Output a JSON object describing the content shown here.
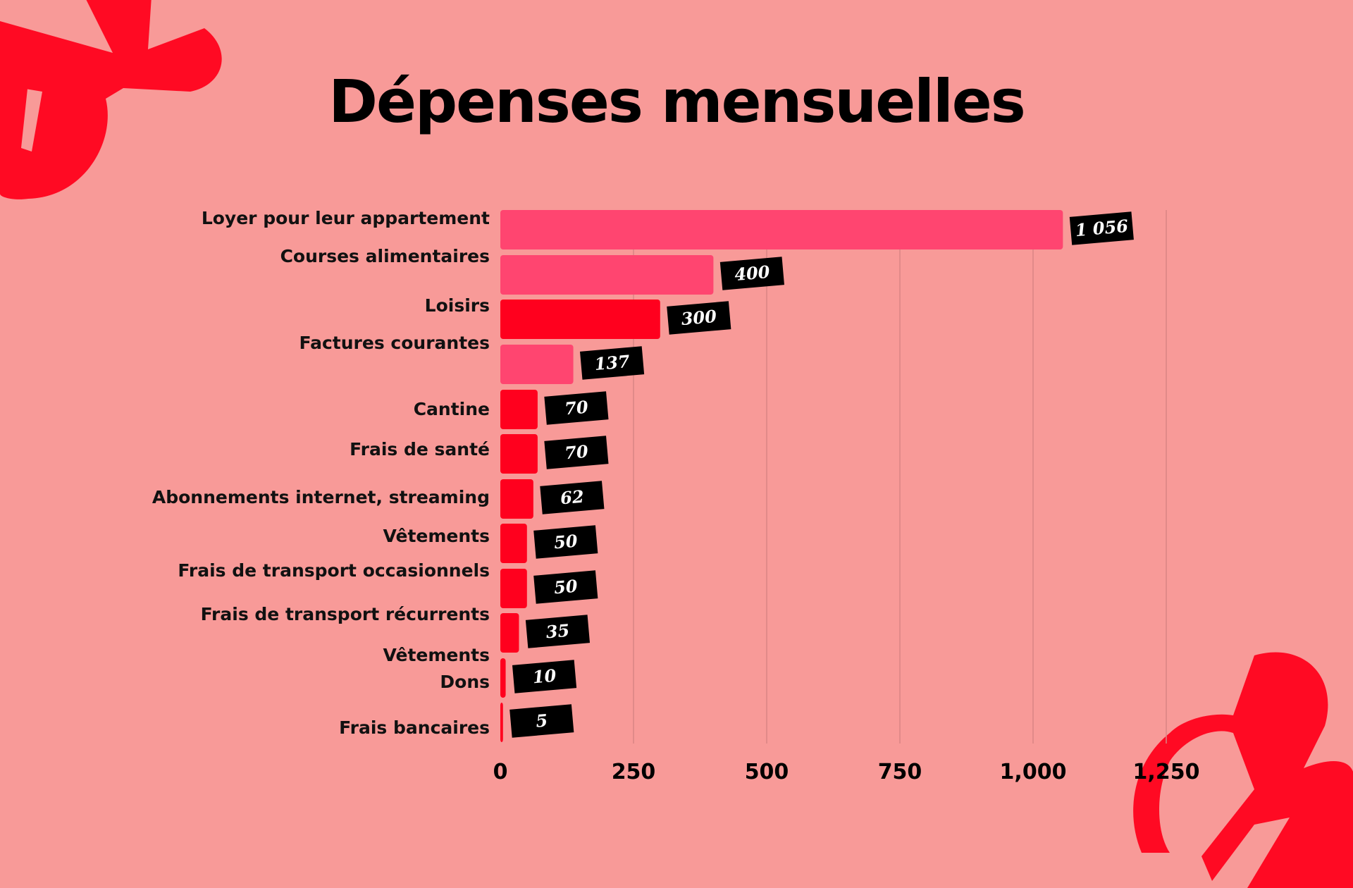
{
  "title": "Dépenses mensuelles",
  "colors": {
    "background": "#f89a98",
    "bar_pink": "#ff4570",
    "bar_red": "#ff001e",
    "label_box": "#000000",
    "decoration": "#ff0a23"
  },
  "chart_data": {
    "type": "bar",
    "orientation": "horizontal",
    "title": "Dépenses mensuelles",
    "categories": [
      "Loyer  pour leur appartement",
      "Courses alimentaires",
      "Loisirs",
      "Factures courantes",
      "Cantine",
      "Frais de santé",
      "Abonnements internet, streaming",
      "Vêtements ",
      "Frais de transport occasionnels",
      "Frais de transport récurrents",
      "Dons",
      "Frais bancaires"
    ],
    "values": [
      1056,
      400,
      300,
      137,
      70,
      70,
      62,
      50,
      50,
      35,
      10,
      5
    ],
    "value_labels": [
      "1 056",
      "400",
      "300",
      "137",
      "70",
      "70",
      "62",
      "50",
      "50",
      "35",
      "10",
      "5"
    ],
    "bar_colors": [
      "#ff4570",
      "#ff4570",
      "#ff001e",
      "#ff4570",
      "#ff001e",
      "#ff001e",
      "#ff001e",
      "#ff001e",
      "#ff001e",
      "#ff001e",
      "#ff001e",
      "#ff001e"
    ],
    "extra_labels": [
      "Vêtements"
    ],
    "xlim": [
      0,
      1250
    ],
    "xticks": [
      0,
      250,
      500,
      750,
      1000,
      1250
    ],
    "xtick_labels": [
      "0",
      "250",
      "500",
      "750",
      "1,000",
      "1,250"
    ],
    "grid": "vertical",
    "xlabel": "",
    "ylabel": ""
  }
}
